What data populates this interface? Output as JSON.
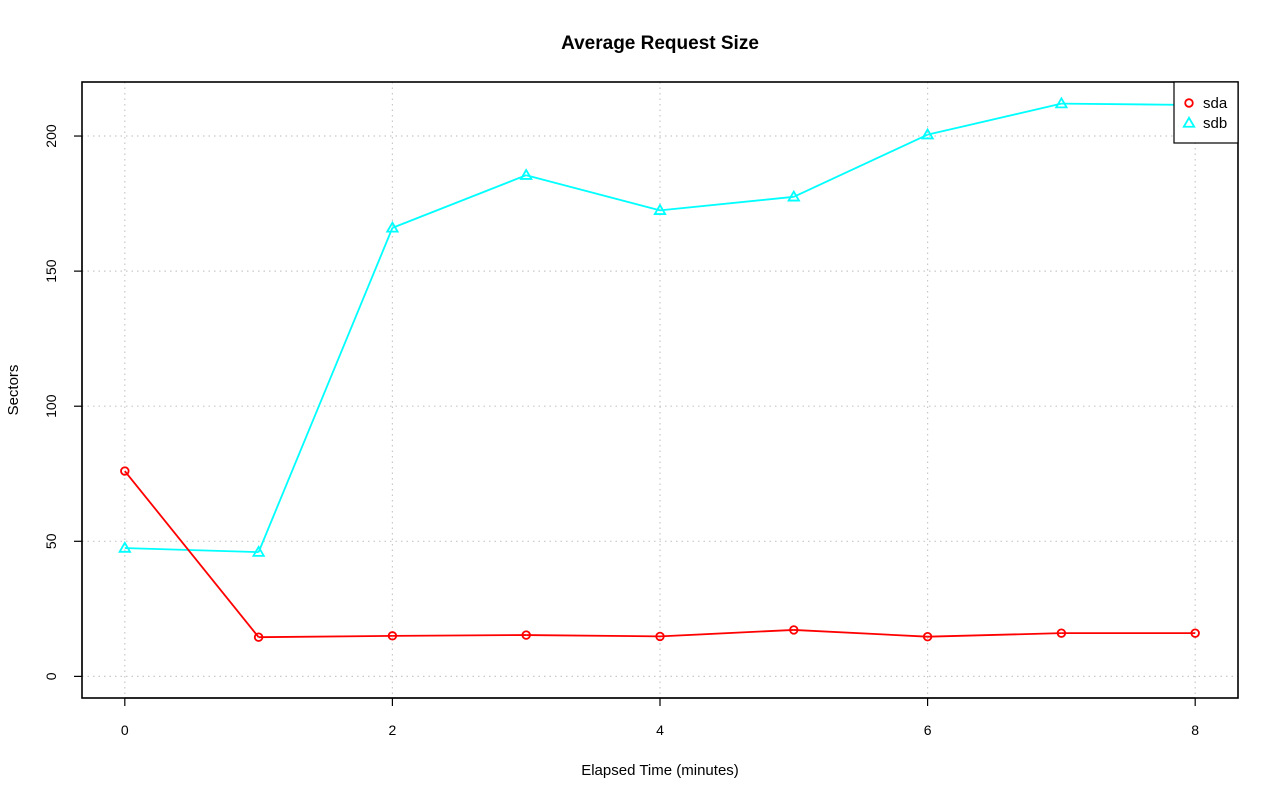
{
  "chart_data": {
    "type": "line",
    "title": "Average Request Size",
    "xlabel": "Elapsed Time (minutes)",
    "ylabel": "Sectors",
    "xlim": [
      -0.32,
      8.32
    ],
    "ylim": [
      -8,
      220
    ],
    "xticks": [
      0,
      2,
      4,
      6,
      8
    ],
    "yticks": [
      0,
      50,
      100,
      150,
      200
    ],
    "grid": true,
    "legend_position": "top-right",
    "x": [
      0,
      1,
      2,
      3,
      4,
      5,
      6,
      7,
      8
    ],
    "series": [
      {
        "name": "sda",
        "color": "#ff0000",
        "marker": "circle",
        "values": [
          76,
          14.5,
          15,
          15.3,
          14.8,
          17.2,
          14.7,
          16,
          16
        ]
      },
      {
        "name": "sdb",
        "color": "#00ffff",
        "marker": "triangle",
        "values": [
          47.5,
          46,
          166,
          185.5,
          172.5,
          177.5,
          200.5,
          212,
          211.5
        ]
      }
    ]
  }
}
